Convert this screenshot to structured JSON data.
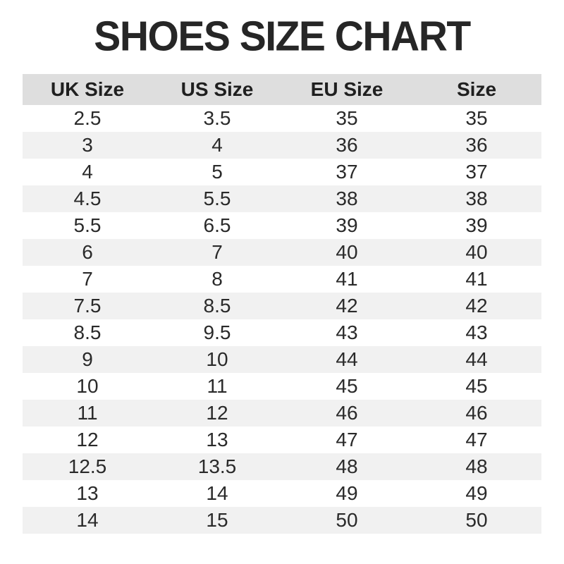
{
  "page": {
    "title": "SHOES SIZE CHART"
  },
  "colors": {
    "title_text": "#262626",
    "header_background": "#dedede",
    "header_text": "#1f1f1f",
    "row_stripe_background": "#f1f1f1",
    "row_background": "#ffffff",
    "cell_text": "#2a2a2a"
  },
  "chart_data": {
    "type": "table",
    "title": "SHOES SIZE CHART",
    "columns": [
      "UK Size",
      "US Size",
      "EU Size",
      "Size"
    ],
    "rows": [
      [
        "2.5",
        "3.5",
        "35",
        "35"
      ],
      [
        "3",
        "4",
        "36",
        "36"
      ],
      [
        "4",
        "5",
        "37",
        "37"
      ],
      [
        "4.5",
        "5.5",
        "38",
        "38"
      ],
      [
        "5.5",
        "6.5",
        "39",
        "39"
      ],
      [
        "6",
        "7",
        "40",
        "40"
      ],
      [
        "7",
        "8",
        "41",
        "41"
      ],
      [
        "7.5",
        "8.5",
        "42",
        "42"
      ],
      [
        "8.5",
        "9.5",
        "43",
        "43"
      ],
      [
        "9",
        "10",
        "44",
        "44"
      ],
      [
        "10",
        "11",
        "45",
        "45"
      ],
      [
        "11",
        "12",
        "46",
        "46"
      ],
      [
        "12",
        "13",
        "47",
        "47"
      ],
      [
        "12.5",
        "13.5",
        "48",
        "48"
      ],
      [
        "13",
        "14",
        "49",
        "49"
      ],
      [
        "14",
        "15",
        "50",
        "50"
      ]
    ],
    "layout": {
      "zebra_striping": true,
      "first_data_row_background": "white",
      "grid": false
    }
  }
}
